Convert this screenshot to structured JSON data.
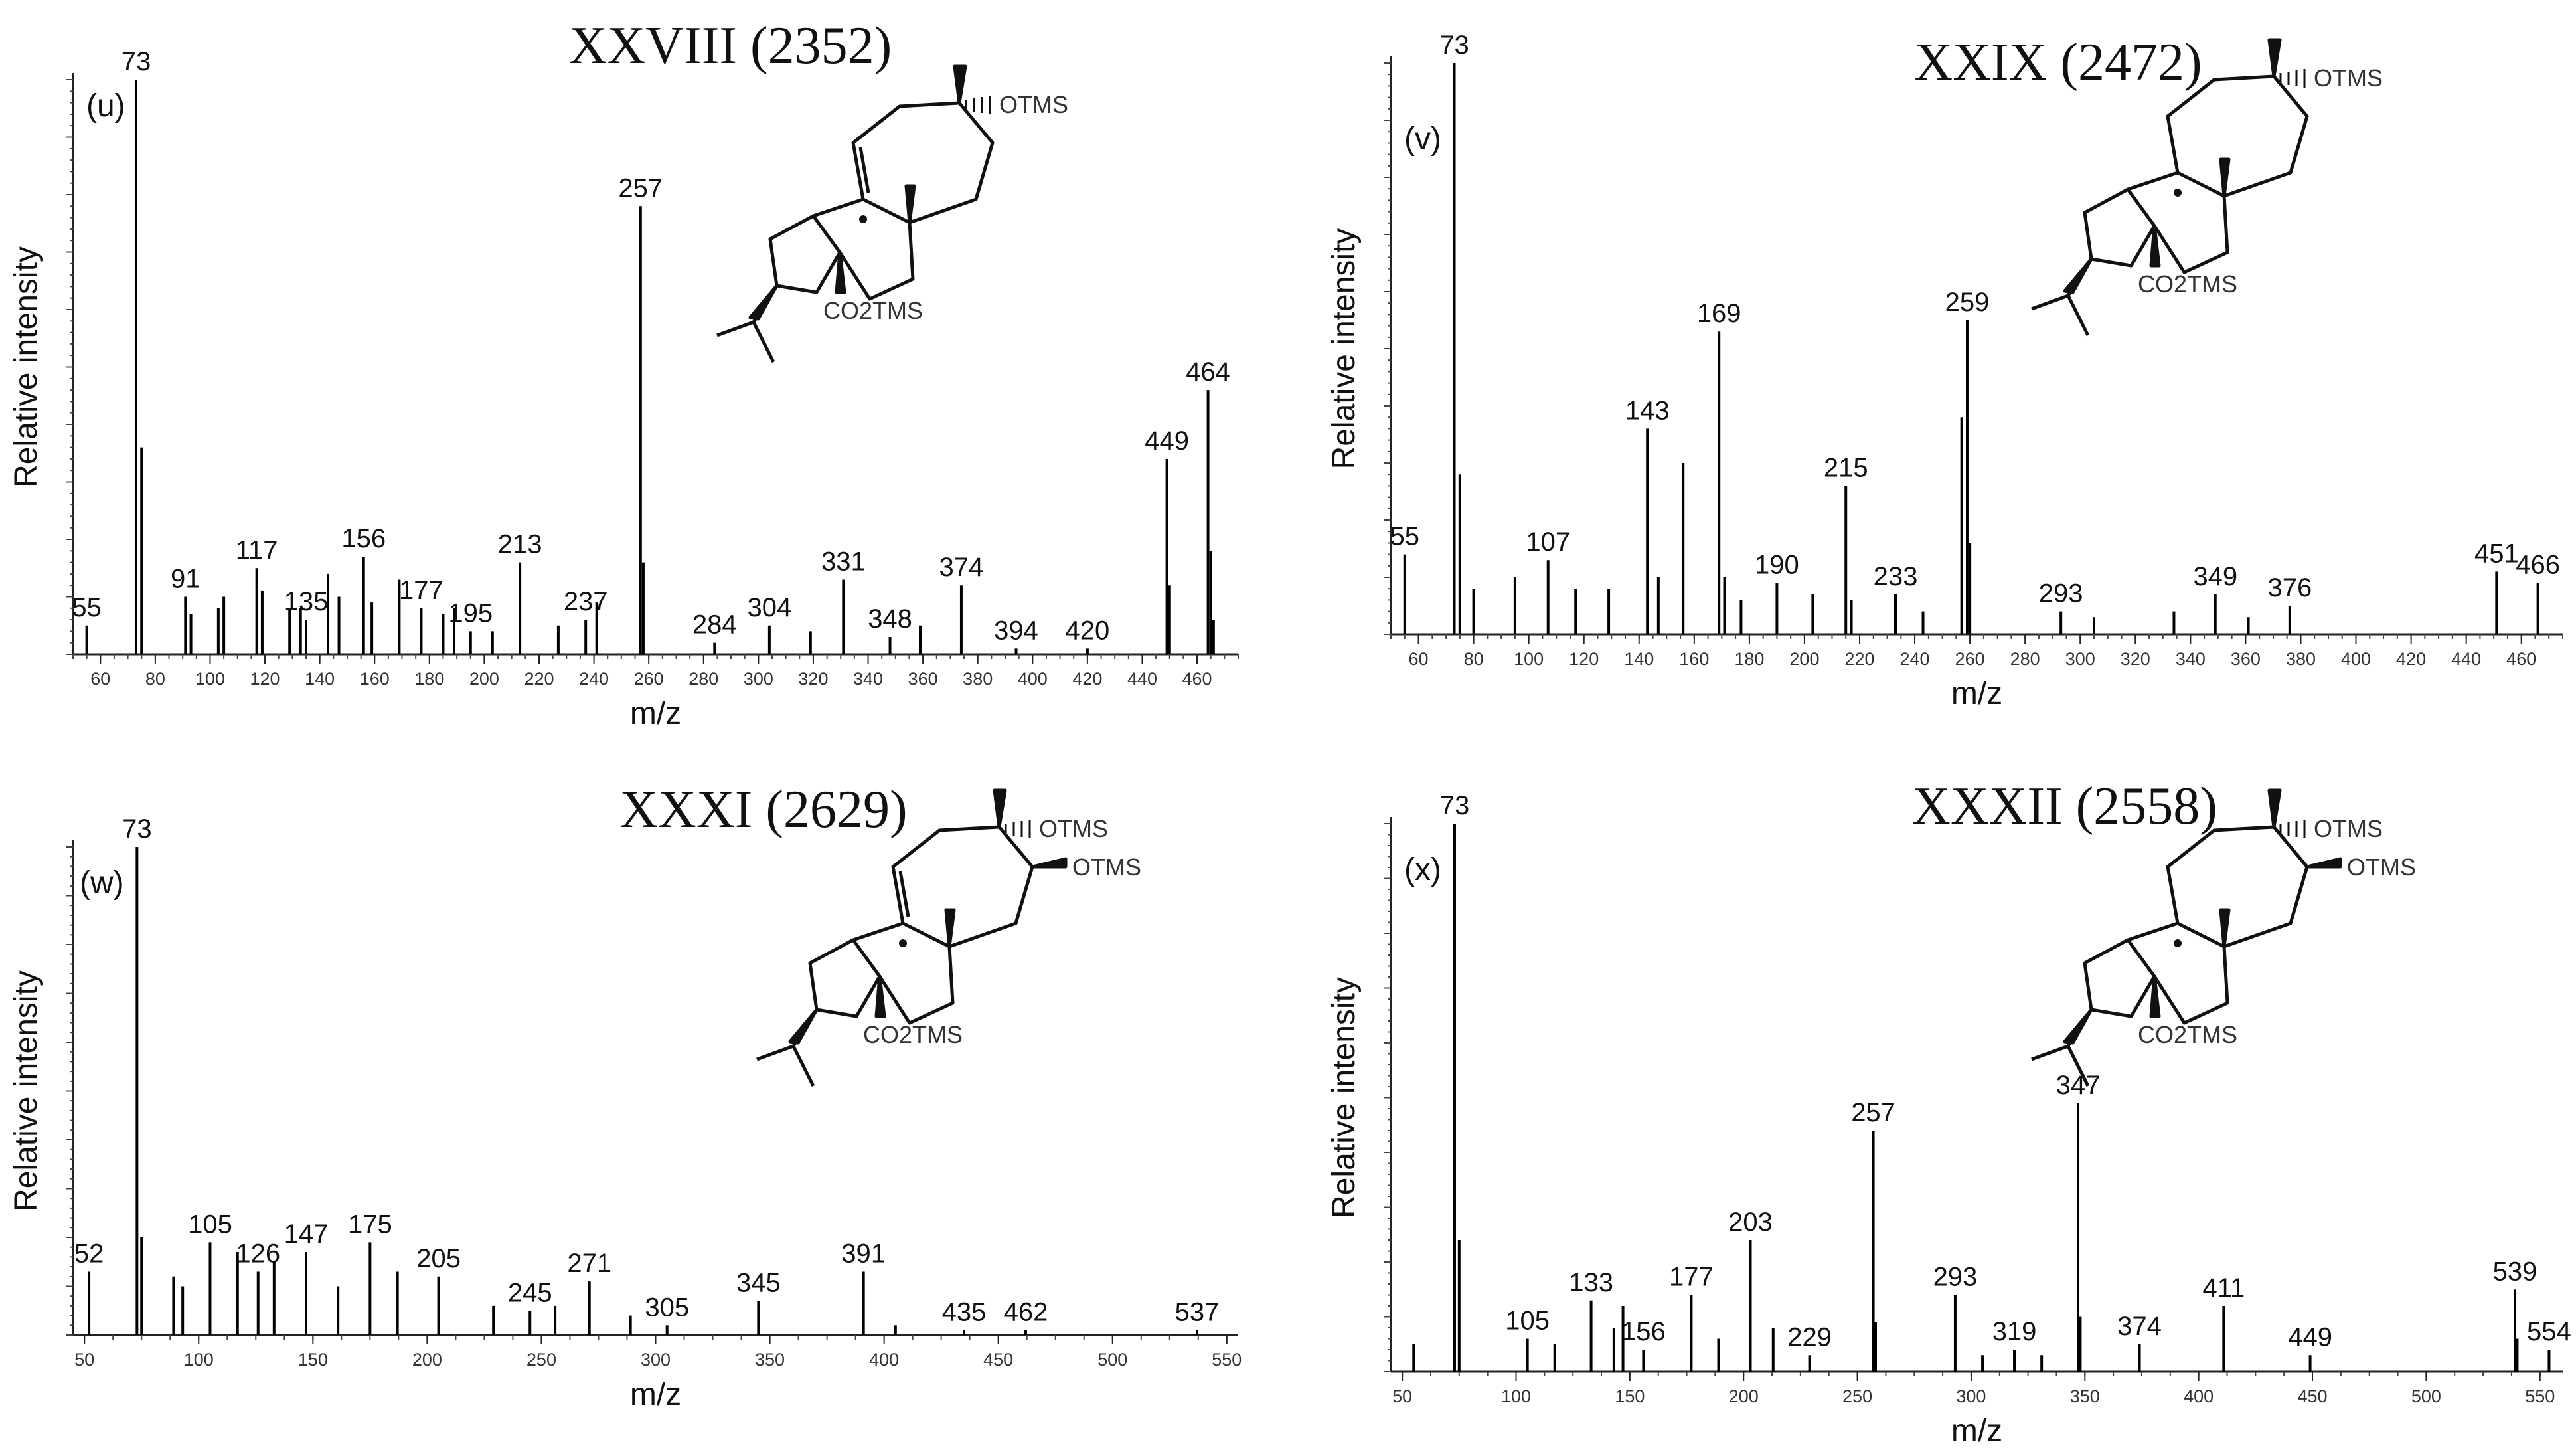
{
  "chart_data": [
    {
      "type": "bar",
      "panel": "(u)",
      "title": "XXVIII (2352)",
      "xlabel": "m/z",
      "ylabel": "Relative intensity",
      "xlim": [
        50,
        475
      ],
      "ylim": [
        0,
        100
      ],
      "xticks": [
        60,
        80,
        100,
        120,
        140,
        160,
        180,
        200,
        220,
        240,
        260,
        280,
        300,
        320,
        340,
        360,
        380,
        400,
        420,
        440,
        460
      ],
      "structure": {
        "substituents": [
          "OTMS"
        ],
        "ester": "CO2TMS",
        "seven_ring_double_bond": true
      },
      "peaks": [
        {
          "mz": 55,
          "i": 5,
          "label": "55"
        },
        {
          "mz": 73,
          "i": 100,
          "label": "73"
        },
        {
          "mz": 75,
          "i": 36
        },
        {
          "mz": 91,
          "i": 10,
          "label": "91"
        },
        {
          "mz": 93,
          "i": 7
        },
        {
          "mz": 103,
          "i": 8
        },
        {
          "mz": 105,
          "i": 10
        },
        {
          "mz": 117,
          "i": 15,
          "label": "117"
        },
        {
          "mz": 119,
          "i": 11
        },
        {
          "mz": 129,
          "i": 8
        },
        {
          "mz": 133,
          "i": 8
        },
        {
          "mz": 135,
          "i": 6,
          "label": "135"
        },
        {
          "mz": 143,
          "i": 14
        },
        {
          "mz": 147,
          "i": 10
        },
        {
          "mz": 156,
          "i": 17,
          "label": "156"
        },
        {
          "mz": 159,
          "i": 9
        },
        {
          "mz": 169,
          "i": 13
        },
        {
          "mz": 177,
          "i": 8,
          "label": "177"
        },
        {
          "mz": 185,
          "i": 7
        },
        {
          "mz": 189,
          "i": 8
        },
        {
          "mz": 195,
          "i": 4,
          "label": "195"
        },
        {
          "mz": 203,
          "i": 4
        },
        {
          "mz": 213,
          "i": 16,
          "label": "213"
        },
        {
          "mz": 227,
          "i": 5
        },
        {
          "mz": 237,
          "i": 6,
          "label": "237"
        },
        {
          "mz": 241,
          "i": 9
        },
        {
          "mz": 257,
          "i": 78,
          "label": "257"
        },
        {
          "mz": 258,
          "i": 16
        },
        {
          "mz": 284,
          "i": 2,
          "label": "284"
        },
        {
          "mz": 304,
          "i": 5,
          "label": "304"
        },
        {
          "mz": 319,
          "i": 4
        },
        {
          "mz": 331,
          "i": 13,
          "label": "331"
        },
        {
          "mz": 348,
          "i": 3,
          "label": "348"
        },
        {
          "mz": 359,
          "i": 5
        },
        {
          "mz": 374,
          "i": 12,
          "label": "374"
        },
        {
          "mz": 394,
          "i": 1,
          "label": "394"
        },
        {
          "mz": 420,
          "i": 1,
          "label": "420"
        },
        {
          "mz": 449,
          "i": 34,
          "label": "449"
        },
        {
          "mz": 450,
          "i": 12
        },
        {
          "mz": 464,
          "i": 46,
          "label": "464"
        },
        {
          "mz": 465,
          "i": 18
        },
        {
          "mz": 466,
          "i": 6
        }
      ]
    },
    {
      "type": "bar",
      "panel": "(v)",
      "title": "XXIX (2472)",
      "xlabel": "m/z",
      "ylabel": "Relative intensity",
      "xlim": [
        50,
        475
      ],
      "ylim": [
        0,
        100
      ],
      "xticks": [
        60,
        80,
        100,
        120,
        140,
        160,
        180,
        200,
        220,
        240,
        260,
        280,
        300,
        320,
        340,
        360,
        380,
        400,
        420,
        440,
        460
      ],
      "structure": {
        "substituents": [
          "OTMS"
        ],
        "ester": "CO2TMS",
        "seven_ring_double_bond": false
      },
      "peaks": [
        {
          "mz": 55,
          "i": 14,
          "label": "55"
        },
        {
          "mz": 73,
          "i": 100,
          "label": "73"
        },
        {
          "mz": 75,
          "i": 28
        },
        {
          "mz": 80,
          "i": 8
        },
        {
          "mz": 95,
          "i": 10
        },
        {
          "mz": 107,
          "i": 13,
          "label": "107"
        },
        {
          "mz": 117,
          "i": 8
        },
        {
          "mz": 129,
          "i": 8
        },
        {
          "mz": 143,
          "i": 36,
          "label": "143"
        },
        {
          "mz": 147,
          "i": 10
        },
        {
          "mz": 156,
          "i": 30
        },
        {
          "mz": 169,
          "i": 53,
          "label": "169"
        },
        {
          "mz": 171,
          "i": 10
        },
        {
          "mz": 177,
          "i": 6
        },
        {
          "mz": 190,
          "i": 9,
          "label": "190"
        },
        {
          "mz": 203,
          "i": 7
        },
        {
          "mz": 215,
          "i": 26,
          "label": "215"
        },
        {
          "mz": 217,
          "i": 6
        },
        {
          "mz": 233,
          "i": 7,
          "label": "233"
        },
        {
          "mz": 243,
          "i": 4
        },
        {
          "mz": 257,
          "i": 38
        },
        {
          "mz": 259,
          "i": 55,
          "label": "259"
        },
        {
          "mz": 260,
          "i": 16
        },
        {
          "mz": 293,
          "i": 4,
          "label": "293"
        },
        {
          "mz": 305,
          "i": 3
        },
        {
          "mz": 334,
          "i": 4
        },
        {
          "mz": 349,
          "i": 7,
          "label": "349"
        },
        {
          "mz": 361,
          "i": 3
        },
        {
          "mz": 376,
          "i": 5,
          "label": "376"
        },
        {
          "mz": 451,
          "i": 11,
          "label": "451"
        },
        {
          "mz": 466,
          "i": 9,
          "label": "466"
        }
      ]
    },
    {
      "type": "bar",
      "panel": "(w)",
      "title": "XXXI (2629)",
      "xlabel": "m/z",
      "ylabel": "Relative intensity",
      "xlim": [
        45,
        555
      ],
      "ylim": [
        0,
        100
      ],
      "xticks": [
        50,
        100,
        150,
        200,
        250,
        300,
        350,
        400,
        450,
        500,
        550
      ],
      "structure": {
        "substituents": [
          "OTMS",
          "OTMS"
        ],
        "ester": "CO2TMS",
        "seven_ring_double_bond": true
      },
      "peaks": [
        {
          "mz": 52,
          "i": 13,
          "label": "52"
        },
        {
          "mz": 73,
          "i": 100,
          "label": "73"
        },
        {
          "mz": 75,
          "i": 20
        },
        {
          "mz": 89,
          "i": 12
        },
        {
          "mz": 93,
          "i": 10
        },
        {
          "mz": 105,
          "i": 19,
          "label": "105"
        },
        {
          "mz": 117,
          "i": 17
        },
        {
          "mz": 126,
          "i": 13,
          "label": "126"
        },
        {
          "mz": 133,
          "i": 15
        },
        {
          "mz": 147,
          "i": 17,
          "label": "147"
        },
        {
          "mz": 161,
          "i": 10
        },
        {
          "mz": 175,
          "i": 19,
          "label": "175"
        },
        {
          "mz": 187,
          "i": 13
        },
        {
          "mz": 205,
          "i": 12,
          "label": "205"
        },
        {
          "mz": 229,
          "i": 6
        },
        {
          "mz": 245,
          "i": 5,
          "label": "245"
        },
        {
          "mz": 256,
          "i": 6
        },
        {
          "mz": 271,
          "i": 11,
          "label": "271"
        },
        {
          "mz": 289,
          "i": 4
        },
        {
          "mz": 305,
          "i": 2,
          "label": "305"
        },
        {
          "mz": 345,
          "i": 7,
          "label": "345"
        },
        {
          "mz": 391,
          "i": 13,
          "label": "391"
        },
        {
          "mz": 405,
          "i": 2
        },
        {
          "mz": 435,
          "i": 1,
          "label": "435"
        },
        {
          "mz": 462,
          "i": 1,
          "label": "462"
        },
        {
          "mz": 537,
          "i": 1,
          "label": "537"
        }
      ]
    },
    {
      "type": "bar",
      "panel": "(x)",
      "title": "XXXII (2558)",
      "xlabel": "m/z",
      "ylabel": "Relative intensity",
      "xlim": [
        45,
        560
      ],
      "ylim": [
        0,
        100
      ],
      "xticks": [
        50,
        100,
        150,
        200,
        250,
        300,
        350,
        400,
        450,
        500,
        550
      ],
      "structure": {
        "substituents": [
          "OTMS",
          "OTMS"
        ],
        "ester": "CO2TMS",
        "seven_ring_double_bond": false
      },
      "peaks": [
        {
          "mz": 55,
          "i": 5
        },
        {
          "mz": 73,
          "i": 100,
          "label": "73"
        },
        {
          "mz": 75,
          "i": 24
        },
        {
          "mz": 105,
          "i": 6,
          "label": "105"
        },
        {
          "mz": 117,
          "i": 5
        },
        {
          "mz": 133,
          "i": 13,
          "label": "133"
        },
        {
          "mz": 143,
          "i": 8
        },
        {
          "mz": 147,
          "i": 12
        },
        {
          "mz": 156,
          "i": 4,
          "label": "156"
        },
        {
          "mz": 177,
          "i": 14,
          "label": "177"
        },
        {
          "mz": 189,
          "i": 6
        },
        {
          "mz": 203,
          "i": 24,
          "label": "203"
        },
        {
          "mz": 213,
          "i": 8
        },
        {
          "mz": 229,
          "i": 3,
          "label": "229"
        },
        {
          "mz": 257,
          "i": 44,
          "label": "257"
        },
        {
          "mz": 258,
          "i": 9
        },
        {
          "mz": 293,
          "i": 14,
          "label": "293"
        },
        {
          "mz": 305,
          "i": 3
        },
        {
          "mz": 319,
          "i": 4,
          "label": "319"
        },
        {
          "mz": 331,
          "i": 3
        },
        {
          "mz": 347,
          "i": 49,
          "label": "347"
        },
        {
          "mz": 348,
          "i": 10
        },
        {
          "mz": 374,
          "i": 5,
          "label": "374"
        },
        {
          "mz": 411,
          "i": 12,
          "label": "411"
        },
        {
          "mz": 449,
          "i": 3,
          "label": "449"
        },
        {
          "mz": 539,
          "i": 15,
          "label": "539"
        },
        {
          "mz": 540,
          "i": 6
        },
        {
          "mz": 554,
          "i": 4,
          "label": "554"
        }
      ]
    }
  ]
}
